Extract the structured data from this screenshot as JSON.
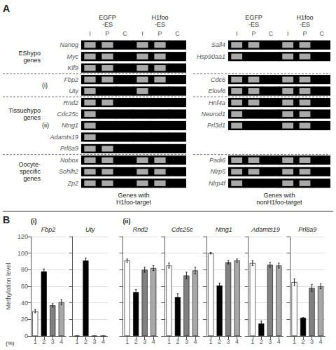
{
  "chart_data": [
    {
      "type": "heatmap",
      "title": "A",
      "x": [
        "I",
        "P",
        "C",
        "I",
        "P",
        "C"
      ],
      "categories": [
        "Nanog",
        "Myc",
        "Klf9",
        "Fbp2",
        "Uty",
        "Rnd2",
        "Cdc25c",
        "Ntng1",
        "Adamts19",
        "Prl8a9",
        "Nobox",
        "Sohlh2",
        "Zp2"
      ],
      "values": [
        [
          1,
          1,
          0,
          1,
          1,
          0
        ],
        [
          1,
          1,
          0,
          1,
          1,
          0
        ],
        [
          1,
          1,
          0,
          1,
          1,
          0
        ],
        [
          1,
          1,
          0,
          1,
          1,
          0
        ],
        [
          1,
          0,
          0,
          1,
          0,
          0
        ],
        [
          1,
          1,
          0,
          0,
          0,
          0
        ],
        [
          1,
          0,
          0,
          0,
          0,
          0
        ],
        [
          1,
          0,
          0,
          0,
          0,
          0
        ],
        [
          1,
          0,
          0,
          0,
          0,
          0
        ],
        [
          1,
          1,
          0,
          0,
          0,
          0
        ],
        [
          1,
          1,
          0,
          1,
          1,
          0
        ],
        [
          1,
          1,
          0,
          1,
          1,
          0
        ],
        [
          1,
          1,
          0,
          1,
          1,
          0
        ]
      ],
      "colors": [
        "black",
        "#bbbbbb"
      ],
      "annotations": [
        "EGFP\n-ES",
        "H1foo\n-ES",
        "EShypo\ngenes",
        "Tissuehypo\ngenes",
        "(i)",
        "(ii)",
        "Oocyte-\nspecific\ngenes"
      ],
      "xlabel": "Genes with\nH1foo-target"
    },
    {
      "type": "heatmap",
      "x": [
        "I",
        "P",
        "C",
        "I",
        "P",
        "C"
      ],
      "categories": [
        "Sall4",
        "Hsp90aa1",
        null,
        "Cdc6",
        "Elovl6",
        "Hnf4a",
        "Neurod1",
        "Prl3d1",
        null,
        null,
        "Padi6",
        "Nlrp5",
        "Nlrp4f"
      ],
      "values": [
        [
          1,
          1,
          0,
          1,
          1,
          0
        ],
        [
          1,
          0,
          0,
          1,
          1,
          0
        ],
        null,
        [
          1,
          1,
          0,
          1,
          1,
          0
        ],
        [
          1,
          1,
          0,
          1,
          1,
          0
        ],
        [
          1,
          1,
          0,
          1,
          1,
          0
        ],
        [
          1,
          0,
          0,
          1,
          1,
          0
        ],
        [
          1,
          0,
          0,
          1,
          1,
          0
        ],
        null,
        null,
        [
          1,
          1,
          0,
          1,
          1,
          0
        ],
        [
          1,
          1,
          0,
          1,
          1,
          0
        ],
        [
          1,
          0,
          0,
          1,
          1,
          0
        ]
      ],
      "colors": [
        "black",
        "#bbbbbb"
      ],
      "annotations": [
        "EGFP\n-ES",
        "H1foo\n-ES"
      ],
      "xlabel": "Genes with\nnonH1foo-target"
    },
    {
      "type": "bar",
      "title": "Fbp2",
      "categories": [
        "1",
        "2",
        "3",
        "4"
      ],
      "values": [
        30,
        78,
        37,
        41
      ],
      "errors": [
        2,
        3,
        2,
        3
      ],
      "colors": [
        "white",
        "black",
        "#808080",
        "#a8a8a8"
      ],
      "ylim": [
        0,
        120
      ],
      "yticks": [
        0,
        20,
        40,
        60,
        80,
        100,
        120
      ],
      "grid": true,
      "ylabel": "Methylation level",
      "annotations": [
        "B",
        "(i)",
        "(%)"
      ]
    },
    {
      "type": "bar",
      "title": "Uty",
      "categories": [
        "1",
        "2",
        "3",
        "4"
      ],
      "values": [
        0,
        91,
        0,
        0
      ],
      "errors": [
        0,
        3,
        0,
        0
      ],
      "colors": [
        "white",
        "black",
        "#808080",
        "#a8a8a8"
      ],
      "ylim": [
        0,
        120
      ],
      "yticks": [
        0,
        20,
        40,
        60,
        80,
        100,
        120
      ],
      "grid": true,
      "tick_labels": "x"
    },
    {
      "type": "bar",
      "title": "Rnd2",
      "categories": [
        "1",
        "2",
        "3",
        "4"
      ],
      "values": [
        91,
        53,
        80,
        82
      ],
      "errors": [
        2,
        3,
        3,
        3
      ],
      "colors": [
        "white",
        "black",
        "#808080",
        "#a8a8a8"
      ],
      "ylim": [
        0,
        120
      ],
      "yticks": [
        0,
        20,
        40,
        60,
        80,
        100,
        120
      ],
      "grid": true,
      "tick_labels": "x",
      "annotations": [
        "(ii)"
      ]
    },
    {
      "type": "bar",
      "title": "Cdc25c",
      "categories": [
        "1",
        "2",
        "3",
        "4"
      ],
      "values": [
        85,
        47,
        73,
        79
      ],
      "errors": [
        3,
        4,
        4,
        4
      ],
      "colors": [
        "white",
        "black",
        "#808080",
        "#a8a8a8"
      ],
      "ylim": [
        0,
        120
      ],
      "yticks": [
        0,
        20,
        40,
        60,
        80,
        100,
        120
      ],
      "grid": true,
      "tick_labels": "x"
    },
    {
      "type": "bar",
      "title": "Ntng1",
      "categories": [
        "1",
        "2",
        "3",
        "4"
      ],
      "values": [
        100,
        61,
        89,
        91
      ],
      "errors": [
        1,
        3,
        2,
        2
      ],
      "colors": [
        "white",
        "black",
        "#808080",
        "#a8a8a8"
      ],
      "ylim": [
        0,
        120
      ],
      "yticks": [
        0,
        20,
        40,
        60,
        80,
        100,
        120
      ],
      "grid": true,
      "tick_labels": "x"
    },
    {
      "type": "bar",
      "title": "Adamts19",
      "categories": [
        "1",
        "2",
        "3",
        "4"
      ],
      "values": [
        88,
        15,
        86,
        85
      ],
      "errors": [
        3,
        3,
        3,
        3
      ],
      "colors": [
        "white",
        "black",
        "#808080",
        "#a8a8a8"
      ],
      "ylim": [
        0,
        120
      ],
      "yticks": [
        0,
        20,
        40,
        60,
        80,
        100,
        120
      ],
      "grid": true,
      "tick_labels": "x"
    },
    {
      "type": "bar",
      "title": "Prl8a9",
      "categories": [
        "1",
        "2",
        "3",
        "4"
      ],
      "values": [
        65,
        22,
        58,
        60
      ],
      "errors": [
        4,
        0,
        4,
        3
      ],
      "colors": [
        "white",
        "black",
        "#808080",
        "#a8a8a8"
      ],
      "ylim": [
        0,
        120
      ],
      "yticks": [
        0,
        20,
        40,
        60,
        80,
        100,
        120
      ],
      "grid": true,
      "tick_labels": "x"
    }
  ]
}
